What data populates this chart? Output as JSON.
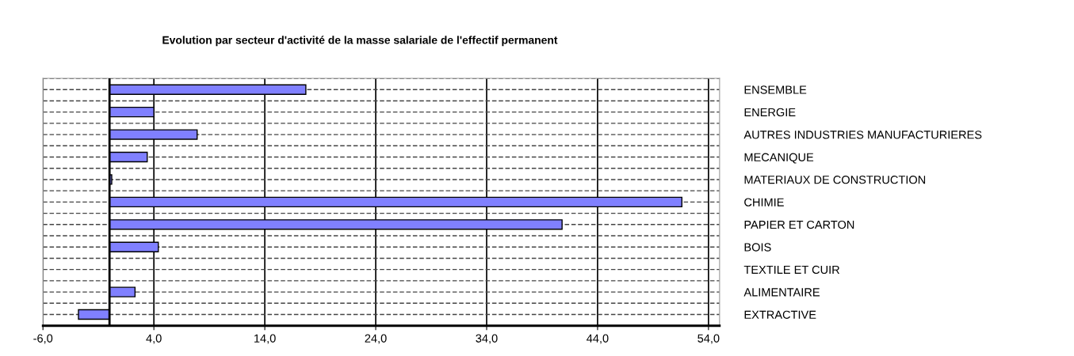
{
  "chart_data": {
    "type": "bar",
    "orientation": "horizontal",
    "title": "Evolution par secteur d'activité de la masse salariale de l'effectif permanent",
    "categories": [
      "ENSEMBLE",
      "ENERGIE",
      "AUTRES INDUSTRIES MANUFACTURIERES",
      "MECANIQUE",
      "MATERIAUX DE CONSTRUCTION",
      "CHIMIE",
      "PAPIER ET CARTON",
      "BOIS",
      "TEXTILE ET CUIR",
      "ALIMENTAIRE",
      "EXTRACTIVE"
    ],
    "values": [
      17.7,
      4.0,
      7.9,
      3.4,
      0.2,
      51.6,
      40.8,
      4.4,
      null,
      2.3,
      -2.8
    ],
    "color": "#8080ff",
    "xlim": [
      -6,
      55
    ],
    "xticks": [
      {
        "value": -6,
        "label": "-6,0"
      },
      {
        "value": 4,
        "label": "4,0"
      },
      {
        "value": 14,
        "label": "14,0"
      },
      {
        "value": 24,
        "label": "24,0"
      },
      {
        "value": 34,
        "label": "34,0"
      },
      {
        "value": 44,
        "label": "44,0"
      },
      {
        "value": 54,
        "label": "54,0"
      }
    ],
    "grid": true
  }
}
